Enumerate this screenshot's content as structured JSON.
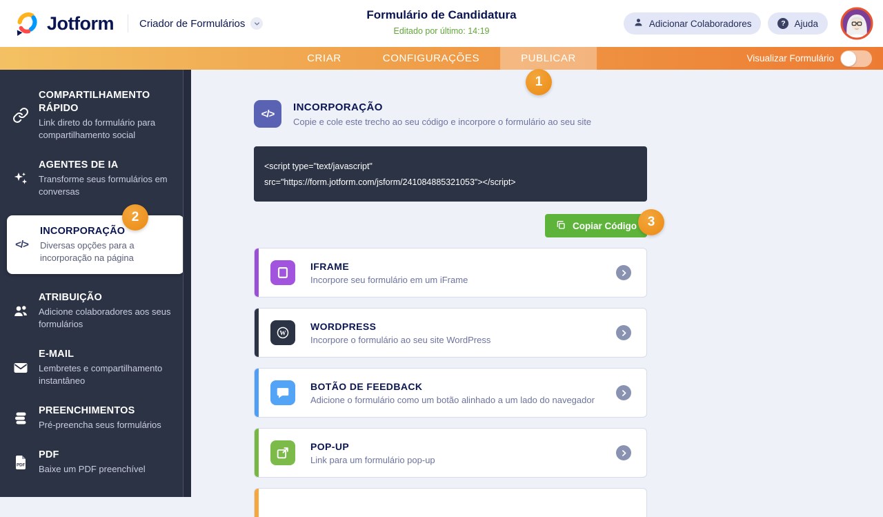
{
  "header": {
    "brand": "Jotform",
    "product_menu": "Criador de Formulários",
    "form_title": "Formulário de Candidatura",
    "last_edited": "Editado por último: 14:19",
    "buttons": {
      "add_collaborators": "Adicionar Colaboradores",
      "help": "Ajuda"
    }
  },
  "nav": {
    "tabs": [
      {
        "label": "CRIAR",
        "active": false
      },
      {
        "label": "CONFIGURAÇÕES",
        "active": false
      },
      {
        "label": "PUBLICAR",
        "active": true
      }
    ],
    "preview_label": "Visualizar Formulário",
    "preview_on": false
  },
  "tour_badges": {
    "step1": "1",
    "step2": "2",
    "step3": "3"
  },
  "sidebar": {
    "items": [
      {
        "title": "COMPARTILHAMENTO RÁPIDO",
        "desc": "Link direto do formulário para compartilhamento social",
        "icon": "link-icon",
        "selected": false
      },
      {
        "title": "AGENTES DE IA",
        "desc": "Transforme seus formulários em conversas",
        "icon": "sparkles-icon",
        "selected": false
      },
      {
        "title": "INCORPORAÇÃO",
        "desc": "Diversas opções para a incorporação na página",
        "icon": "code-icon",
        "selected": true
      },
      {
        "title": "ATRIBUIÇÃO",
        "desc": "Adicione colaboradores aos seus formulários",
        "icon": "users-icon",
        "selected": false
      },
      {
        "title": "E-MAIL",
        "desc": "Lembretes e compartilhamento instantâneo",
        "icon": "mail-icon",
        "selected": false
      },
      {
        "title": "PREENCHIMENTOS",
        "desc": "Pré-preencha seus formulários",
        "icon": "stack-icon",
        "selected": false
      },
      {
        "title": "PDF",
        "desc": "Baixe um PDF preenchível",
        "icon": "pdf-icon",
        "selected": false
      }
    ]
  },
  "main": {
    "section": {
      "title": "INCORPORAÇÃO",
      "desc": "Copie e cole este trecho ao seu código e incorpore o formulário ao seu site",
      "icon": "embed-code-icon"
    },
    "embed_code": {
      "line1": "<script type=\"text/javascript\"",
      "line2": "src=\"https://form.jotform.com/jsform/241084885321053\"></script>"
    },
    "copy_button": "Copiar Código",
    "cards": [
      {
        "title": "IFRAME",
        "desc": "Incorpore seu formulário em um iFrame",
        "icon": "iframe-icon",
        "stripe": "#9B4FD6",
        "icon_bg": "#A254DE",
        "partial": false
      },
      {
        "title": "WORDPRESS",
        "desc": "Incorpore o formulário ao seu site WordPress",
        "icon": "wordpress-icon",
        "stripe": "#2C3345",
        "icon_bg": "#2C3345",
        "partial": false
      },
      {
        "title": "BOTÃO DE FEEDBACK",
        "desc": "Adicione o formulário como um botão alinhado a um lado do navegador",
        "icon": "feedback-icon",
        "stripe": "#4E9EF6",
        "icon_bg": "#53A3F7",
        "partial": false
      },
      {
        "title": "POP-UP",
        "desc": "Link para um formulário pop-up",
        "icon": "popup-icon",
        "stripe": "#77B843",
        "icon_bg": "#7CBB4A",
        "partial": false
      },
      {
        "title": "",
        "desc": "",
        "icon": "",
        "stripe": "#F5A73B",
        "icon_bg": "",
        "partial": true
      }
    ]
  },
  "colors": {
    "accent_orange": "#ED7B33",
    "badge_orange": "#EE9122",
    "copy_green": "#5EB43B",
    "edited_green": "#61A637",
    "navy": "#2C3345",
    "title_navy": "#0A1551"
  }
}
